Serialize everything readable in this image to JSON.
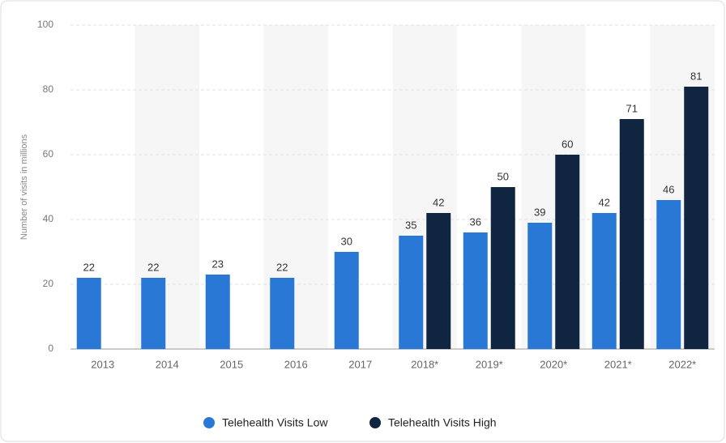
{
  "chart_data": {
    "type": "bar",
    "y_label": "Number of visits in millions",
    "categories": [
      "2013",
      "2014",
      "2015",
      "2016",
      "2017",
      "2018*",
      "2019*",
      "2020*",
      "2021*",
      "2022*"
    ],
    "series": [
      {
        "name": "Telehealth Visits Low",
        "color": "#2a78d6",
        "values": [
          22,
          22,
          23,
          22,
          30,
          35,
          36,
          39,
          42,
          46
        ]
      },
      {
        "name": "Telehealth Visits High",
        "color": "#0f2540",
        "values": [
          null,
          null,
          null,
          null,
          null,
          42,
          50,
          60,
          71,
          81
        ]
      }
    ],
    "ylim": [
      0,
      100
    ],
    "yticks": [
      0,
      20,
      40,
      60,
      80,
      100
    ],
    "grid": true,
    "legend": "bottom"
  }
}
